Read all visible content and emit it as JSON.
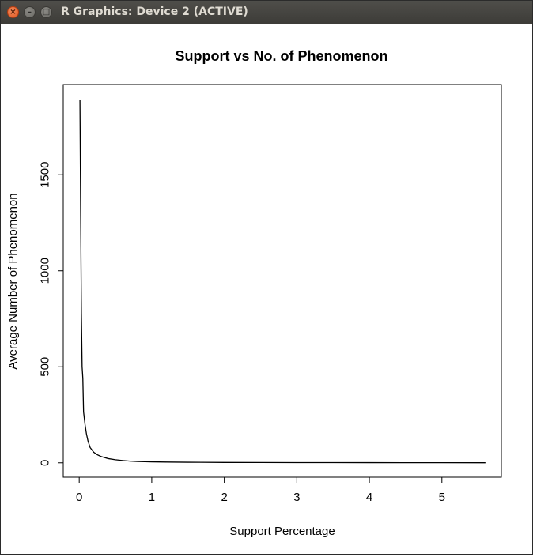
{
  "window": {
    "title": "R Graphics: Device 2 (ACTIVE)",
    "close_glyph": "×",
    "minimize_glyph": "–",
    "maximize_glyph": "□"
  },
  "chart_data": {
    "type": "line",
    "title": "Support vs No. of Phenomenon",
    "xlabel": "Support Percentage",
    "ylabel": "Average Number of Phenomenon",
    "xlim": [
      -0.22,
      5.82
    ],
    "ylim": [
      -75,
      1970
    ],
    "xticks": [
      0,
      1,
      2,
      3,
      4,
      5
    ],
    "yticks": [
      0,
      500,
      1000,
      1500
    ],
    "grid": false,
    "legend": "none",
    "line_color": "#000000",
    "series": [
      {
        "x": [
          0.01,
          0.02,
          0.03,
          0.04,
          0.05,
          0.06,
          0.08,
          0.1,
          0.12,
          0.15,
          0.2,
          0.25,
          0.3,
          0.4,
          0.5,
          0.6,
          0.7,
          0.8,
          1.0,
          1.2,
          1.5,
          2.0,
          2.5,
          3.0,
          3.5,
          4.0,
          4.5,
          5.0,
          5.6
        ],
        "y": [
          1890,
          1300,
          780,
          500,
          440,
          265,
          200,
          150,
          115,
          80,
          55,
          42,
          33,
          22,
          16,
          12,
          9,
          7,
          5,
          4,
          3,
          2,
          1.5,
          1,
          1,
          0.8,
          0.6,
          0.5,
          0.3
        ]
      }
    ]
  }
}
